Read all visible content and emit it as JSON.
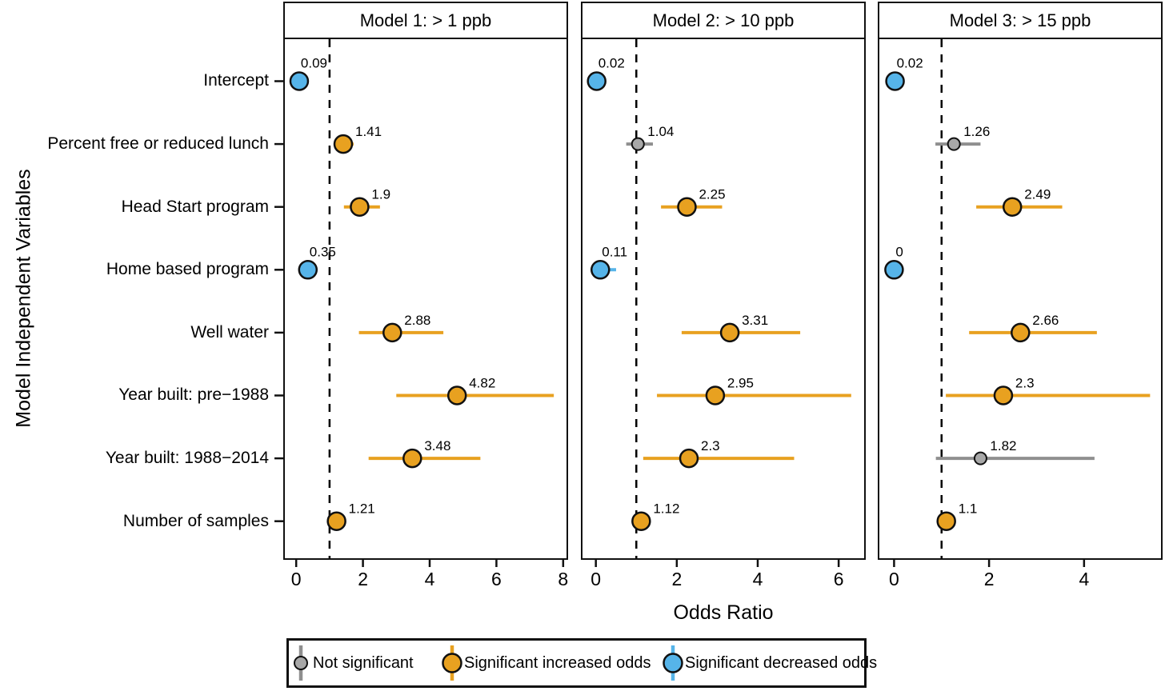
{
  "figure": {
    "x_axis_title": "Odds Ratio",
    "y_axis_title": "Model Independent Variables"
  },
  "colors": {
    "increased": "#E8A120",
    "decreased": "#56B4E9",
    "not_significant_fill": "#A8A8A8",
    "not_significant_line": "#8F8F8F",
    "point_stroke": "#111111",
    "reference_line": "#000000"
  },
  "legend": {
    "items": [
      {
        "label": "Not significant",
        "type": "not_significant"
      },
      {
        "label": "Significant increased odds",
        "type": "increased"
      },
      {
        "label": "Significant decreased odds",
        "type": "decreased"
      }
    ]
  },
  "chart_data": {
    "type": "scatter",
    "subtype": "forest-plot-odds-ratios",
    "title": "",
    "xlabel": "Odds Ratio",
    "ylabel": "Model Independent Variables",
    "reference_line_x": 1,
    "grid": false,
    "categories": [
      "Intercept",
      "Percent free or reduced lunch",
      "Head Start program",
      "Home based program",
      "Well water",
      "Year built: pre−1988",
      "Year built: 1988−2014",
      "Number of samples"
    ],
    "panels": [
      {
        "title": "Model 1: > 1 ppb",
        "xlim": [
          -0.34,
          8.1
        ],
        "ticks": [
          0,
          2,
          4,
          6,
          8
        ],
        "points": [
          {
            "category": "Intercept",
            "or": 0.09,
            "label": "0.09",
            "sig": "decreased",
            "ci": null
          },
          {
            "category": "Percent free or reduced lunch",
            "or": 1.41,
            "label": "1.41",
            "sig": "increased",
            "ci": [
              1.15,
              1.72
            ]
          },
          {
            "category": "Head Start program",
            "or": 1.9,
            "label": "1.9",
            "sig": "increased",
            "ci": [
              1.43,
              2.51
            ]
          },
          {
            "category": "Home based program",
            "or": 0.35,
            "label": "0.35",
            "sig": "decreased",
            "ci": null
          },
          {
            "category": "Well water",
            "or": 2.88,
            "label": "2.88",
            "sig": "increased",
            "ci": [
              1.88,
              4.41
            ]
          },
          {
            "category": "Year built: pre−1988",
            "or": 4.82,
            "label": "4.82",
            "sig": "increased",
            "ci": [
              3.0,
              7.72
            ]
          },
          {
            "category": "Year built: 1988−2014",
            "or": 3.48,
            "label": "3.48",
            "sig": "increased",
            "ci": [
              2.17,
              5.52
            ]
          },
          {
            "category": "Number of samples",
            "or": 1.21,
            "label": "1.21",
            "sig": "increased",
            "ci": [
              1.06,
              1.38
            ]
          }
        ]
      },
      {
        "title": "Model 2: > 10 ppb",
        "xlim": [
          -0.33,
          6.63
        ],
        "ticks": [
          0,
          2,
          4,
          6
        ],
        "points": [
          {
            "category": "Intercept",
            "or": 0.02,
            "label": "0.02",
            "sig": "decreased",
            "ci": null
          },
          {
            "category": "Percent free or reduced lunch",
            "or": 1.04,
            "label": "1.04",
            "sig": "not_significant",
            "ci": [
              0.75,
              1.41
            ]
          },
          {
            "category": "Head Start program",
            "or": 2.25,
            "label": "2.25",
            "sig": "increased",
            "ci": [
              1.61,
              3.12
            ]
          },
          {
            "category": "Home based program",
            "or": 0.11,
            "label": "0.11",
            "sig": "decreased",
            "ci": [
              0.04,
              0.5
            ]
          },
          {
            "category": "Well water",
            "or": 3.31,
            "label": "3.31",
            "sig": "increased",
            "ci": [
              2.12,
              5.05
            ]
          },
          {
            "category": "Year built: pre−1988",
            "or": 2.95,
            "label": "2.95",
            "sig": "increased",
            "ci": [
              1.51,
              6.31
            ]
          },
          {
            "category": "Year built: 1988−2014",
            "or": 2.3,
            "label": "2.3",
            "sig": "increased",
            "ci": [
              1.17,
              4.9
            ]
          },
          {
            "category": "Number of samples",
            "or": 1.12,
            "label": "1.12",
            "sig": "increased",
            "ci": [
              1.0,
              1.26
            ]
          }
        ]
      },
      {
        "title": "Model 3: > 15 ppb",
        "xlim": [
          -0.31,
          5.62
        ],
        "ticks": [
          0,
          2,
          4
        ],
        "points": [
          {
            "category": "Intercept",
            "or": 0.02,
            "label": "0.02",
            "sig": "decreased",
            "ci": null
          },
          {
            "category": "Percent free or reduced lunch",
            "or": 1.26,
            "label": "1.26",
            "sig": "not_significant",
            "ci": [
              0.87,
              1.82
            ]
          },
          {
            "category": "Head Start program",
            "or": 2.49,
            "label": "2.49",
            "sig": "increased",
            "ci": [
              1.73,
              3.54
            ]
          },
          {
            "category": "Home based program",
            "or": 0.0,
            "label": "0",
            "sig": "decreased",
            "ci": null
          },
          {
            "category": "Well water",
            "or": 2.66,
            "label": "2.66",
            "sig": "increased",
            "ci": [
              1.58,
              4.27
            ]
          },
          {
            "category": "Year built: pre−1988",
            "or": 2.3,
            "label": "2.3",
            "sig": "increased",
            "ci": [
              1.09,
              5.39
            ]
          },
          {
            "category": "Year built: 1988−2014",
            "or": 1.82,
            "label": "1.82",
            "sig": "not_significant",
            "ci": [
              0.88,
              4.22
            ]
          },
          {
            "category": "Number of samples",
            "or": 1.1,
            "label": "1.1",
            "sig": "increased",
            "ci": [
              0.99,
              1.22
            ]
          }
        ]
      }
    ]
  }
}
